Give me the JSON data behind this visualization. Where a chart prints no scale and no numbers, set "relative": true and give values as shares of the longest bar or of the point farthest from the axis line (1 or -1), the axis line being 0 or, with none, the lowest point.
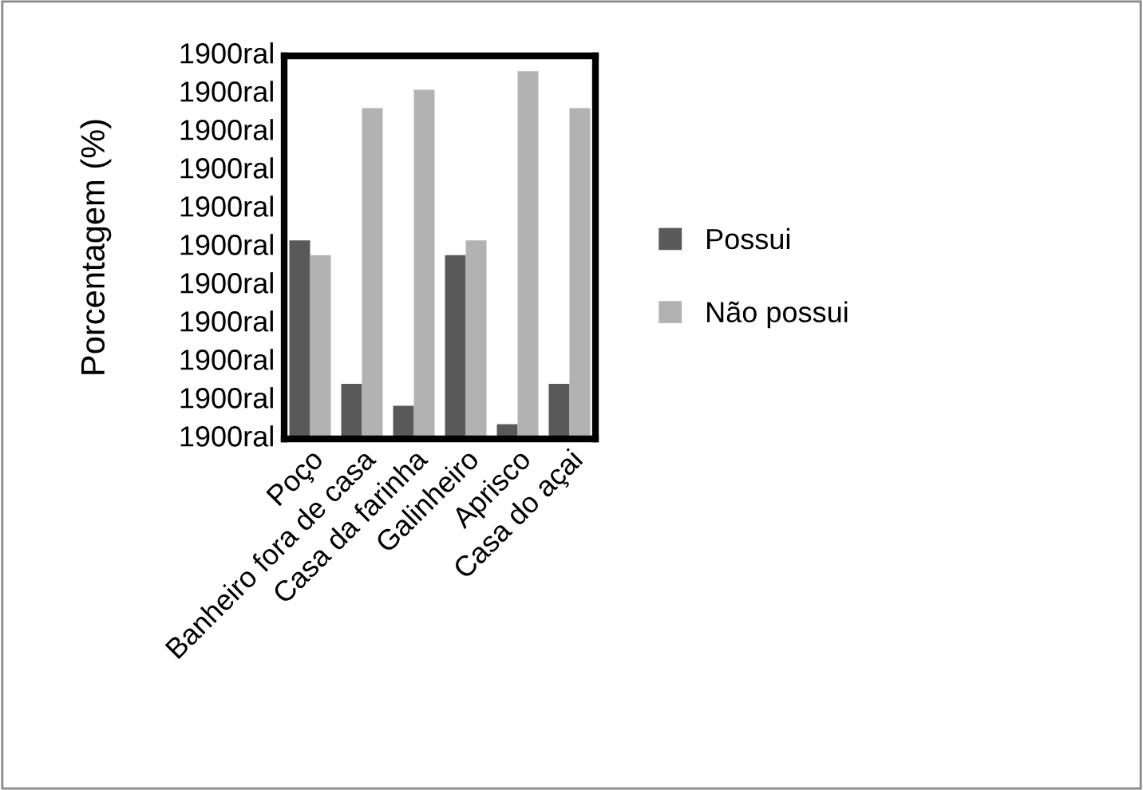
{
  "chart_data": {
    "type": "bar",
    "ylabel": "Porcentagem (%)",
    "relative": true,
    "categories": [
      "Poço",
      "Banheiro fora de casa",
      "Casa da farinha",
      "Galinheiro",
      "Aprisco",
      "Casa do açai"
    ],
    "series": [
      {
        "name": "Possui",
        "color": "#595959",
        "values": [
          0.54,
          0.15,
          0.09,
          0.5,
          0.04,
          0.15
        ]
      },
      {
        "name": "Não possui",
        "color": "#b2b2b2",
        "values": [
          0.5,
          0.9,
          0.95,
          0.54,
          1,
          0.9
        ]
      }
    ],
    "annotations": [
      "1900ral",
      "1900ral",
      "1900ral",
      "1900ral",
      "1900ral",
      "1900ral",
      "1900ral",
      "1900ral",
      "1900ral",
      "1900ral",
      "1900ral"
    ],
    "legend": "right"
  }
}
